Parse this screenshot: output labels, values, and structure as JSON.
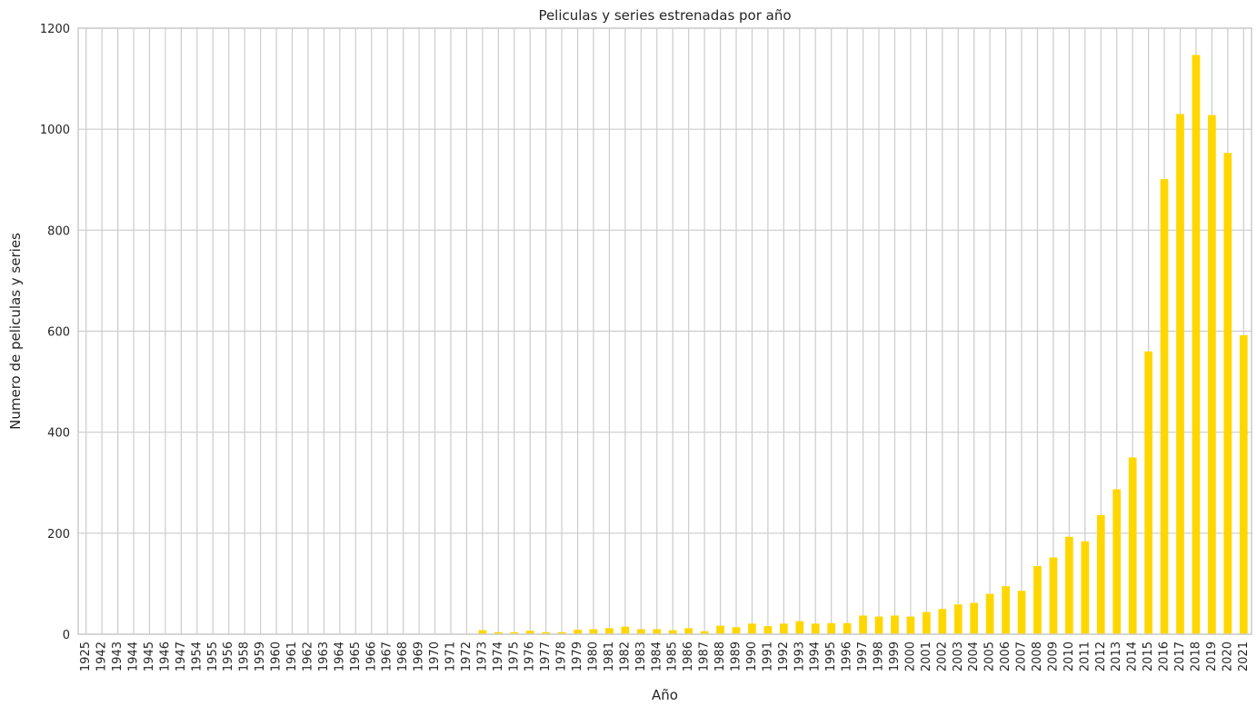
{
  "chart_data": {
    "type": "bar",
    "title": "Peliculas y series estrenadas por año",
    "xlabel": "Año",
    "ylabel": "Numero de peliculas y series",
    "ylim": [
      0,
      1200
    ],
    "yticks": [
      0,
      200,
      400,
      600,
      800,
      1000,
      1200
    ],
    "grid": true,
    "bar_color": "#ffd700",
    "grid_color": "#cccccc",
    "categories": [
      "1925",
      "1942",
      "1943",
      "1944",
      "1945",
      "1946",
      "1947",
      "1954",
      "1955",
      "1956",
      "1958",
      "1959",
      "1960",
      "1961",
      "1962",
      "1963",
      "1964",
      "1965",
      "1966",
      "1967",
      "1968",
      "1969",
      "1970",
      "1971",
      "1972",
      "1973",
      "1974",
      "1975",
      "1976",
      "1977",
      "1978",
      "1979",
      "1980",
      "1981",
      "1982",
      "1983",
      "1984",
      "1985",
      "1986",
      "1987",
      "1988",
      "1989",
      "1990",
      "1991",
      "1992",
      "1993",
      "1994",
      "1995",
      "1996",
      "1997",
      "1998",
      "1999",
      "2000",
      "2001",
      "2002",
      "2003",
      "2004",
      "2005",
      "2006",
      "2007",
      "2008",
      "2009",
      "2010",
      "2011",
      "2012",
      "2013",
      "2014",
      "2015",
      "2016",
      "2017",
      "2018",
      "2019",
      "2020",
      "2021"
    ],
    "values": [
      1,
      1,
      1,
      1,
      1,
      1,
      1,
      1,
      1,
      1,
      1,
      1,
      1,
      1,
      1,
      1,
      1,
      1,
      1,
      1,
      1,
      1,
      1,
      1,
      1,
      8,
      4,
      4,
      7,
      4,
      4,
      9,
      10,
      12,
      15,
      10,
      10,
      8,
      12,
      6,
      17,
      14,
      21,
      16,
      21,
      26,
      21,
      22,
      22,
      37,
      35,
      37,
      35,
      44,
      50,
      59,
      62,
      80,
      95,
      86,
      135,
      152,
      193,
      184,
      236,
      287,
      350,
      560,
      901,
      1030,
      1147,
      1028,
      953,
      592
    ]
  }
}
